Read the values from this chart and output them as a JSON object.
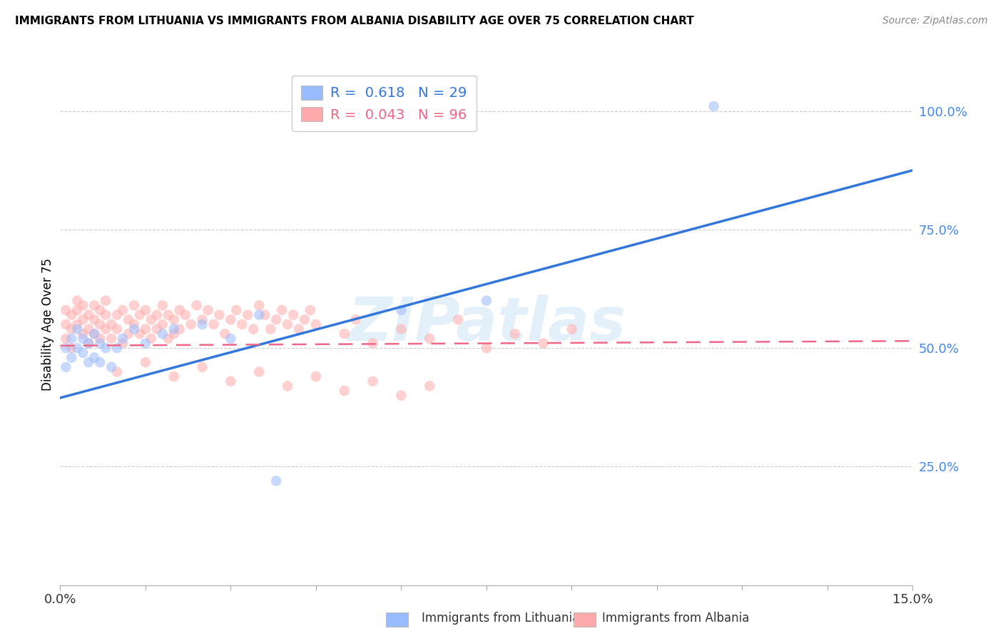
{
  "title": "IMMIGRANTS FROM LITHUANIA VS IMMIGRANTS FROM ALBANIA DISABILITY AGE OVER 75 CORRELATION CHART",
  "source": "Source: ZipAtlas.com",
  "ylabel": "Disability Age Over 75",
  "xmin": 0.0,
  "xmax": 0.15,
  "ymin": 0.0,
  "ymax": 1.1,
  "ytick_vals": [
    0.25,
    0.5,
    0.75,
    1.0
  ],
  "ytick_labels": [
    "25.0%",
    "50.0%",
    "75.0%",
    "100.0%"
  ],
  "xtick_vals": [
    0.0,
    0.015,
    0.03,
    0.045,
    0.06,
    0.075,
    0.09,
    0.105,
    0.12,
    0.135,
    0.15
  ],
  "grid_color": "#cccccc",
  "background_color": "#ffffff",
  "watermark_text": "ZIPatlas",
  "r_lithuania": 0.618,
  "n_lithuania": 29,
  "r_albania": 0.043,
  "n_albania": 96,
  "lithuania_color": "#99bbff",
  "albania_color": "#ffaaaa",
  "lithuania_line_color": "#3377dd",
  "albania_line_color": "#ee6688",
  "ytick_color": "#4488ee",
  "xtick_label_color": "#000000",
  "scatter_alpha": 0.55,
  "scatter_size": 110,
  "lith_line_y0": 0.395,
  "lith_line_y1": 0.875,
  "alb_line_y0": 0.505,
  "alb_line_y1": 0.515,
  "lithuania_x": [
    0.001,
    0.001,
    0.002,
    0.002,
    0.003,
    0.003,
    0.004,
    0.004,
    0.005,
    0.005,
    0.006,
    0.006,
    0.007,
    0.007,
    0.008,
    0.009,
    0.01,
    0.011,
    0.013,
    0.015,
    0.018,
    0.02,
    0.025,
    0.03,
    0.035,
    0.06,
    0.075,
    0.115,
    0.038
  ],
  "lithuania_y": [
    0.5,
    0.46,
    0.52,
    0.48,
    0.54,
    0.5,
    0.49,
    0.52,
    0.47,
    0.51,
    0.48,
    0.53,
    0.51,
    0.47,
    0.5,
    0.46,
    0.5,
    0.52,
    0.54,
    0.51,
    0.53,
    0.54,
    0.55,
    0.52,
    0.57,
    0.58,
    0.6,
    1.01,
    0.22
  ],
  "albania_x": [
    0.001,
    0.001,
    0.001,
    0.002,
    0.002,
    0.002,
    0.003,
    0.003,
    0.003,
    0.004,
    0.004,
    0.004,
    0.005,
    0.005,
    0.005,
    0.006,
    0.006,
    0.006,
    0.007,
    0.007,
    0.007,
    0.008,
    0.008,
    0.008,
    0.009,
    0.009,
    0.01,
    0.01,
    0.011,
    0.011,
    0.012,
    0.012,
    0.013,
    0.013,
    0.014,
    0.014,
    0.015,
    0.015,
    0.016,
    0.016,
    0.017,
    0.017,
    0.018,
    0.018,
    0.019,
    0.019,
    0.02,
    0.02,
    0.021,
    0.021,
    0.022,
    0.023,
    0.024,
    0.025,
    0.026,
    0.027,
    0.028,
    0.029,
    0.03,
    0.031,
    0.032,
    0.033,
    0.034,
    0.035,
    0.036,
    0.037,
    0.038,
    0.039,
    0.04,
    0.041,
    0.042,
    0.043,
    0.044,
    0.045,
    0.05,
    0.052,
    0.055,
    0.06,
    0.065,
    0.07,
    0.075,
    0.08,
    0.085,
    0.09,
    0.01,
    0.015,
    0.02,
    0.025,
    0.03,
    0.035,
    0.04,
    0.045,
    0.05,
    0.055,
    0.06,
    0.065
  ],
  "albania_y": [
    0.55,
    0.52,
    0.58,
    0.54,
    0.57,
    0.5,
    0.58,
    0.55,
    0.6,
    0.56,
    0.53,
    0.59,
    0.54,
    0.57,
    0.51,
    0.56,
    0.53,
    0.59,
    0.55,
    0.58,
    0.52,
    0.57,
    0.54,
    0.6,
    0.55,
    0.52,
    0.57,
    0.54,
    0.58,
    0.51,
    0.56,
    0.53,
    0.59,
    0.55,
    0.57,
    0.53,
    0.58,
    0.54,
    0.56,
    0.52,
    0.57,
    0.54,
    0.59,
    0.55,
    0.57,
    0.52,
    0.56,
    0.53,
    0.58,
    0.54,
    0.57,
    0.55,
    0.59,
    0.56,
    0.58,
    0.55,
    0.57,
    0.53,
    0.56,
    0.58,
    0.55,
    0.57,
    0.54,
    0.59,
    0.57,
    0.54,
    0.56,
    0.58,
    0.55,
    0.57,
    0.54,
    0.56,
    0.58,
    0.55,
    0.53,
    0.56,
    0.51,
    0.54,
    0.52,
    0.56,
    0.5,
    0.53,
    0.51,
    0.54,
    0.45,
    0.47,
    0.44,
    0.46,
    0.43,
    0.45,
    0.42,
    0.44,
    0.41,
    0.43,
    0.4,
    0.42
  ]
}
